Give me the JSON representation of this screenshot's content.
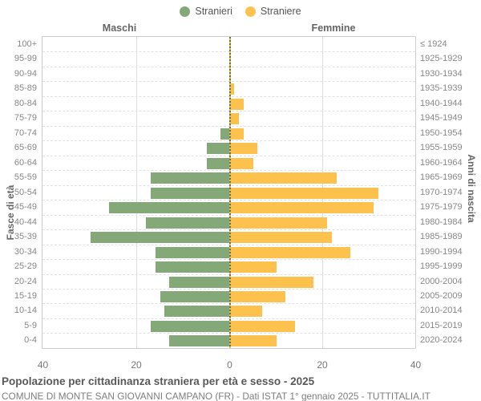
{
  "legend": {
    "male_label": "Stranieri",
    "female_label": "Straniere"
  },
  "headers": {
    "left": "Maschi",
    "right": "Femmine"
  },
  "axes": {
    "left_title": "Fasce di età",
    "right_title": "Anni di nascita",
    "x_ticks": [
      "40",
      "20",
      "0",
      "20",
      "40"
    ]
  },
  "footer": {
    "title": "Popolazione per cittadinanza straniera per età e sesso - 2025",
    "subtitle": "COMUNE DI MONTE SAN GIOVANNI CAMPANO (FR) - Dati ISTAT 1° gennaio 2025 - TUTTITALIA.IT"
  },
  "colors": {
    "male": "#84a877",
    "female": "#fdc24d",
    "grid": "#dddddd",
    "center_line_dark": "#6f6f4c",
    "center_line_light": "#d9c55c"
  },
  "chart_data": {
    "type": "bar",
    "subtype": "population-pyramid",
    "title": "Popolazione per cittadinanza straniera per età e sesso - 2025",
    "xlabel": "",
    "ylabel_left": "Fasce di età",
    "ylabel_right": "Anni di nascita",
    "xlim": [
      -40,
      40
    ],
    "x_tick_step": 20,
    "grid": true,
    "legend_position": "top-center",
    "categories": [
      "100+",
      "95-99",
      "90-94",
      "85-89",
      "80-84",
      "75-79",
      "70-74",
      "65-69",
      "60-64",
      "55-59",
      "50-54",
      "45-49",
      "40-44",
      "35-39",
      "30-34",
      "25-29",
      "20-24",
      "15-19",
      "10-14",
      "5-9",
      "0-4"
    ],
    "birth_years": [
      "≤ 1924",
      "1925-1929",
      "1930-1934",
      "1935-1939",
      "1940-1944",
      "1945-1949",
      "1950-1954",
      "1955-1959",
      "1960-1964",
      "1965-1969",
      "1970-1974",
      "1975-1979",
      "1980-1984",
      "1985-1989",
      "1990-1994",
      "1995-1999",
      "2000-2004",
      "2005-2009",
      "2010-2014",
      "2015-2019",
      "2020-2024"
    ],
    "series": [
      {
        "name": "Stranieri",
        "side": "left",
        "color": "#84a877",
        "values": [
          0,
          0,
          0,
          0,
          0,
          0,
          2,
          5,
          5,
          17,
          17,
          26,
          18,
          30,
          16,
          16,
          13,
          15,
          14,
          17,
          13
        ]
      },
      {
        "name": "Straniere",
        "side": "right",
        "color": "#fdc24d",
        "values": [
          0,
          0,
          0,
          1,
          3,
          2,
          3,
          6,
          5,
          23,
          32,
          31,
          21,
          22,
          26,
          10,
          18,
          12,
          7,
          14,
          10
        ]
      }
    ]
  }
}
